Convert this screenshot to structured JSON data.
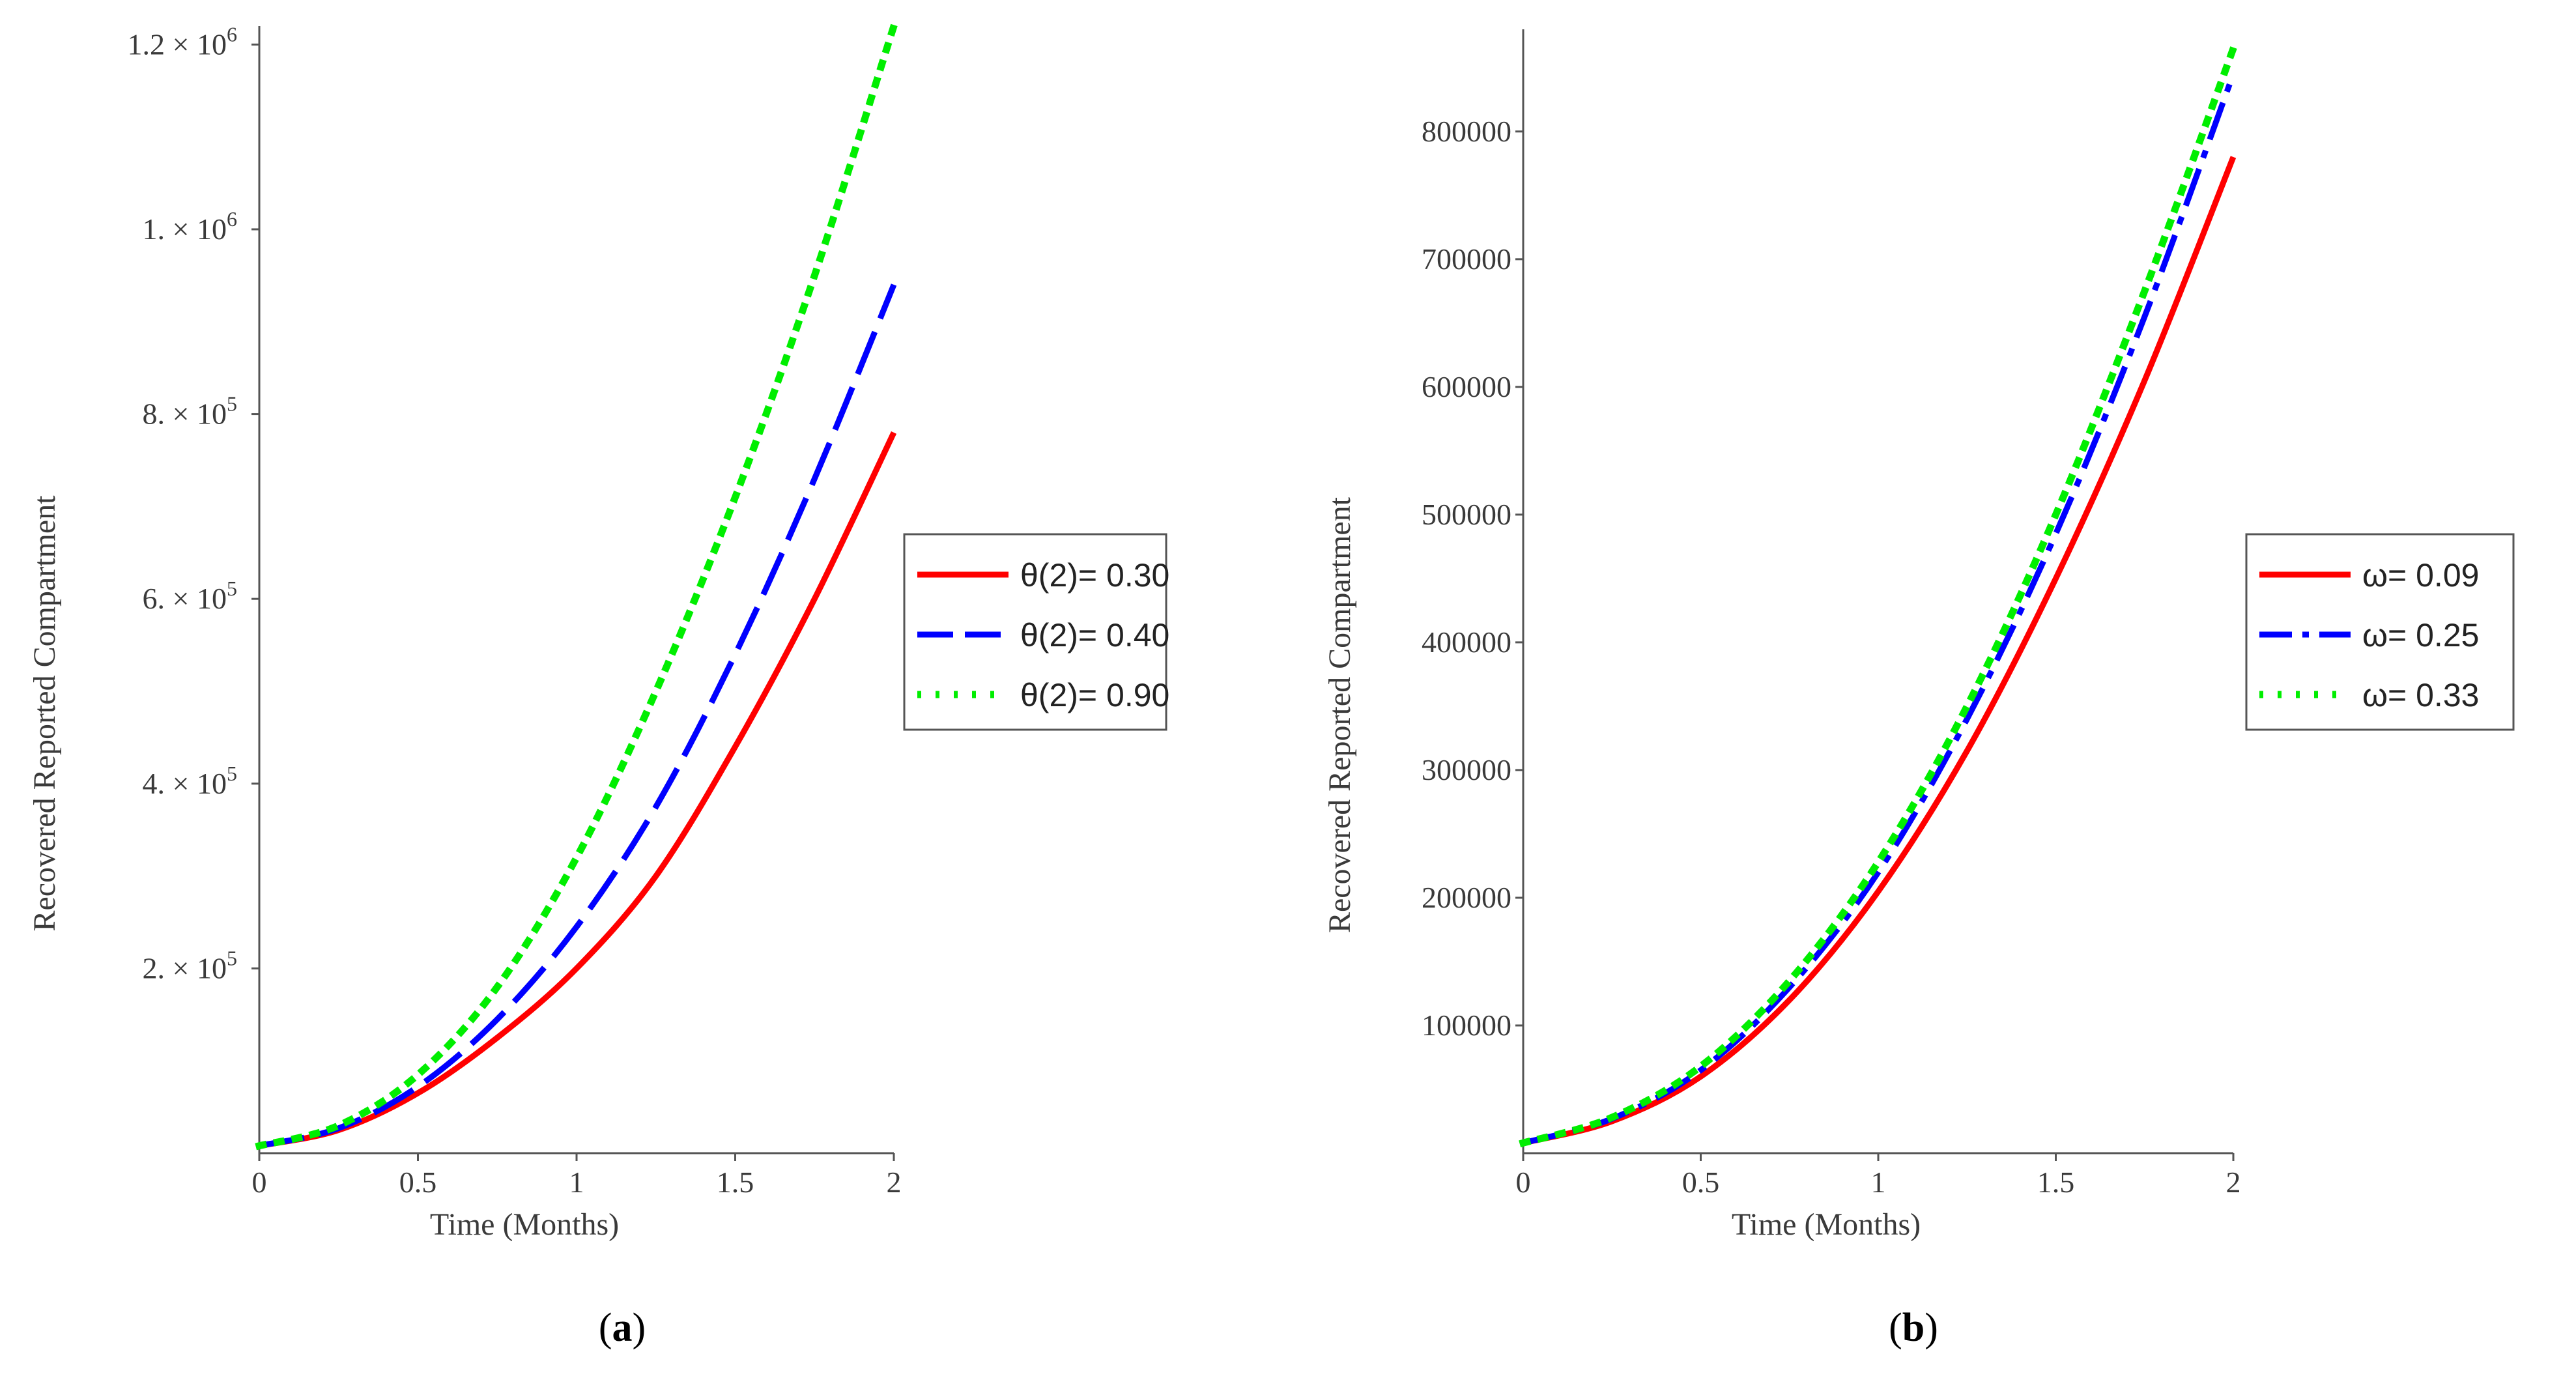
{
  "chart_data": [
    {
      "type": "line",
      "panel_label": "(a)",
      "panel_letter": "a",
      "xlabel": "Time (Months)",
      "ylabel": "Recovered Reported Compartment",
      "xlim": [
        0,
        2
      ],
      "ylim": [
        0,
        1220000
      ],
      "xticks": [
        {
          "value": 0,
          "label": "0"
        },
        {
          "value": 0.5,
          "label": "0.5"
        },
        {
          "value": 1,
          "label": "1"
        },
        {
          "value": 1.5,
          "label": "1.5"
        },
        {
          "value": 2,
          "label": "2"
        }
      ],
      "yticks": [
        {
          "value": 200000,
          "mantissa": "2. × 10",
          "exp": "5"
        },
        {
          "value": 400000,
          "mantissa": "4. × 10",
          "exp": "5"
        },
        {
          "value": 600000,
          "mantissa": "6. × 10",
          "exp": "5"
        },
        {
          "value": 800000,
          "mantissa": "8. × 10",
          "exp": "5"
        },
        {
          "value": 1000000,
          "mantissa": "1. × 10",
          "exp": "6"
        },
        {
          "value": 1200000,
          "mantissa": "1.2 × 10",
          "exp": "6"
        }
      ],
      "legend_position": "right",
      "series": [
        {
          "name": "θ(2)= 0.30",
          "color": "#ff0000",
          "style": "solid",
          "x": [
            0,
            0.25,
            0.5,
            0.75,
            1,
            1.25,
            1.5,
            1.75,
            2
          ],
          "y": [
            8000,
            25000,
            65000,
            125000,
            200000,
            300000,
            440000,
            600000,
            780000
          ]
        },
        {
          "name": "θ(2)= 0.40",
          "color": "#0000ff",
          "style": "dash",
          "x": [
            0,
            0.25,
            0.5,
            0.75,
            1,
            1.25,
            1.5,
            1.75,
            2
          ],
          "y": [
            8000,
            27000,
            72000,
            145000,
            245000,
            375000,
            540000,
            730000,
            940000
          ]
        },
        {
          "name": "θ(2)= 0.90",
          "color": "#00ee00",
          "style": "dot",
          "x": [
            0,
            0.25,
            0.5,
            0.75,
            1,
            1.25,
            1.5,
            1.75,
            2
          ],
          "y": [
            8000,
            30000,
            85000,
            180000,
            320000,
            500000,
            710000,
            950000,
            1220000
          ]
        }
      ]
    },
    {
      "type": "line",
      "panel_label": "(b)",
      "panel_letter": "b",
      "xlabel": "Time (Months)",
      "ylabel": "Recovered Reported Compartment",
      "xlim": [
        0,
        2
      ],
      "ylim": [
        0,
        880000
      ],
      "xticks": [
        {
          "value": 0,
          "label": "0"
        },
        {
          "value": 0.5,
          "label": "0.5"
        },
        {
          "value": 1,
          "label": "1"
        },
        {
          "value": 1.5,
          "label": "1.5"
        },
        {
          "value": 2,
          "label": "2"
        }
      ],
      "yticks": [
        {
          "value": 100000,
          "label": "100000"
        },
        {
          "value": 200000,
          "label": "200000"
        },
        {
          "value": 300000,
          "label": "300000"
        },
        {
          "value": 400000,
          "label": "400000"
        },
        {
          "value": 500000,
          "label": "500000"
        },
        {
          "value": 600000,
          "label": "600000"
        },
        {
          "value": 700000,
          "label": "700000"
        },
        {
          "value": 800000,
          "label": "800000"
        }
      ],
      "legend_position": "right",
      "series": [
        {
          "name": "ω= 0.09",
          "color": "#ff0000",
          "style": "solid",
          "x": [
            0,
            0.25,
            0.5,
            0.75,
            1,
            1.25,
            1.5,
            1.75,
            2
          ],
          "y": [
            8000,
            25000,
            60000,
            120000,
            205000,
            315000,
            450000,
            605000,
            780000
          ]
        },
        {
          "name": "ω= 0.25",
          "color": "#0000ff",
          "style": "dashdot",
          "x": [
            0,
            0.25,
            0.5,
            0.75,
            1,
            1.25,
            1.5,
            1.75,
            2
          ],
          "y": [
            8000,
            27000,
            65000,
            130000,
            220000,
            340000,
            485000,
            655000,
            845000
          ]
        },
        {
          "name": "ω= 0.33",
          "color": "#00ee00",
          "style": "dot",
          "x": [
            0,
            0.25,
            0.5,
            0.75,
            1,
            1.25,
            1.5,
            1.75,
            2
          ],
          "y": [
            8000,
            28000,
            68000,
            135000,
            228000,
            350000,
            500000,
            675000,
            865000
          ]
        }
      ]
    }
  ]
}
